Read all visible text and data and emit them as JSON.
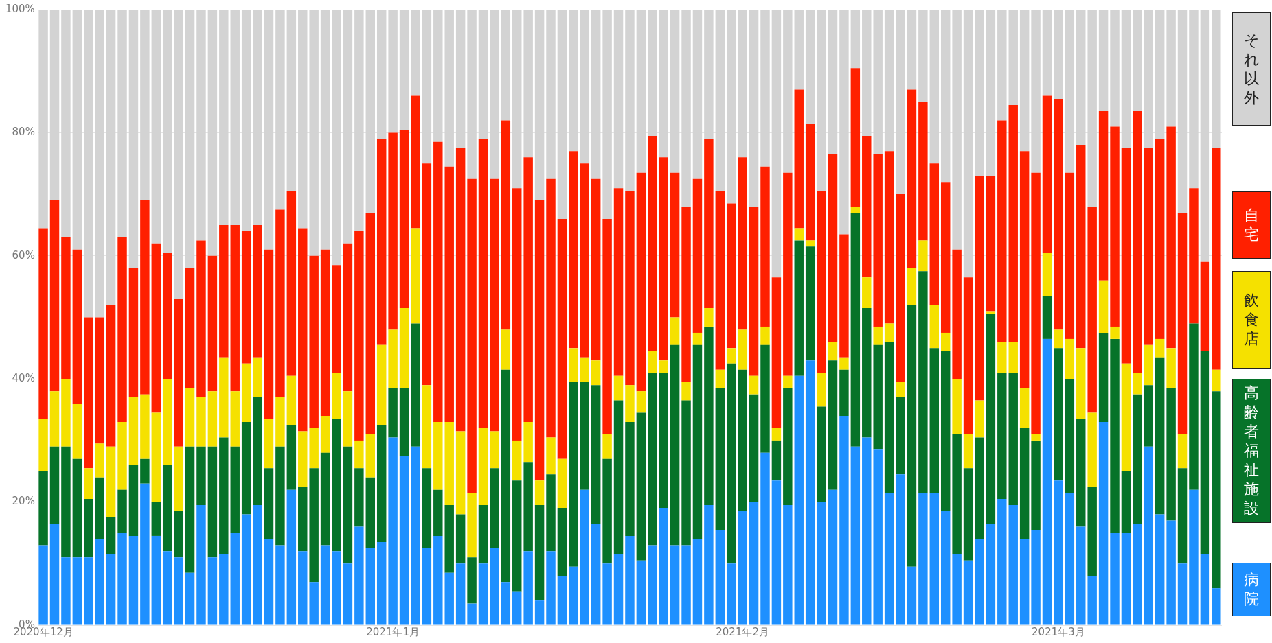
{
  "chart_data": {
    "type": "bar",
    "stacked": true,
    "categories": [
      "2020年12月",
      null,
      null,
      null,
      null,
      null,
      null,
      null,
      null,
      null,
      null,
      null,
      null,
      null,
      null,
      null,
      null,
      null,
      null,
      null,
      null,
      null,
      null,
      null,
      null,
      null,
      null,
      null,
      null,
      null,
      null,
      "2021年1月",
      null,
      null,
      null,
      null,
      null,
      null,
      null,
      null,
      null,
      null,
      null,
      null,
      null,
      null,
      null,
      null,
      null,
      null,
      null,
      null,
      null,
      null,
      null,
      null,
      null,
      null,
      null,
      null,
      null,
      null,
      "2021年2月",
      null,
      null,
      null,
      null,
      null,
      null,
      null,
      null,
      null,
      null,
      null,
      null,
      null,
      null,
      null,
      null,
      null,
      null,
      null,
      null,
      null,
      null,
      null,
      null,
      null,
      null,
      null,
      "2021年3月",
      null,
      null,
      null,
      null,
      null,
      null,
      null,
      null,
      null,
      null,
      null,
      null,
      null,
      null
    ],
    "ylim": [
      0,
      100
    ],
    "yticks": [
      {
        "value": 0,
        "label": "0%"
      },
      {
        "value": 20,
        "label": "20%"
      },
      {
        "value": 40,
        "label": "40%"
      },
      {
        "value": 60,
        "label": "60%"
      },
      {
        "value": 80,
        "label": "80%"
      },
      {
        "value": 100,
        "label": "100%"
      }
    ],
    "grid": "y",
    "legend": "right",
    "series": [
      {
        "name": "病院",
        "color": "#1e90ff",
        "values": [
          13,
          16.5,
          11,
          11,
          11,
          14,
          11.5,
          15,
          14.5,
          23,
          14.5,
          12,
          11,
          8.5,
          19.5,
          11,
          11.5,
          15,
          18,
          19.5,
          14,
          13,
          22,
          12,
          7,
          13,
          12,
          10,
          16,
          12.5,
          13.5,
          30.5,
          27.5,
          29,
          12.5,
          14.5,
          8.5,
          10,
          3.5,
          10,
          12.5,
          7,
          5.5,
          12,
          4,
          12,
          8,
          9.5,
          22,
          16.5,
          10,
          11.5,
          14.5,
          10.5,
          13,
          19,
          13,
          13,
          14,
          19.5,
          15.5,
          10,
          18.5,
          20,
          28,
          23.5,
          19.5,
          40.5,
          43,
          20,
          22,
          34,
          29,
          30.5,
          28.5,
          21.5,
          24.5,
          9.5,
          21.5,
          21.5,
          18.5,
          11.5,
          10.5,
          14,
          16.5,
          20.5,
          19.5,
          14,
          15.5,
          46.5,
          23.5,
          21.5,
          16,
          8,
          33,
          15,
          15,
          16.5,
          29,
          18,
          17,
          10,
          22,
          11.5,
          6
        ]
      },
      {
        "name": "高齢者福祉施設",
        "color": "#067329",
        "values": [
          12,
          12.5,
          18,
          16,
          9.5,
          10,
          6,
          7,
          11.5,
          4,
          5.5,
          14,
          7.5,
          20.5,
          9.5,
          18,
          19,
          14,
          15,
          17.5,
          11.5,
          16,
          10.5,
          10.5,
          18.5,
          15,
          21.5,
          19,
          9.5,
          11.5,
          19,
          8,
          11,
          20,
          13,
          7.5,
          11,
          8,
          7.5,
          9.5,
          13,
          34.5,
          18,
          14.5,
          15.5,
          12.5,
          11,
          30,
          17.5,
          22.5,
          17,
          25,
          18.5,
          24,
          28,
          22,
          32.5,
          23.5,
          31.5,
          29,
          23,
          32.5,
          23,
          17.5,
          17.5,
          6.5,
          19,
          22,
          18.5,
          15.5,
          21,
          7.5,
          38,
          21,
          17,
          24.5,
          12.5,
          42.5,
          36,
          23.5,
          26,
          19.5,
          15,
          16.5,
          34,
          20.5,
          21.5,
          18,
          14.5,
          7,
          21.5,
          18.5,
          17.5,
          14.5,
          14.5,
          31.5,
          10,
          21,
          10,
          25.5,
          21.5,
          15.5,
          27,
          33,
          32
        ]
      },
      {
        "name": "飲食店",
        "color": "#f5e100",
        "values": [
          8.5,
          9,
          11,
          9,
          5,
          5.5,
          11.5,
          11,
          11,
          10.5,
          14.5,
          14,
          10.5,
          9.5,
          8,
          9,
          13,
          9,
          9.5,
          6.5,
          8,
          8,
          8,
          9,
          6.5,
          6,
          7.5,
          9,
          4.5,
          7,
          13,
          9.5,
          13,
          15.5,
          13.5,
          11,
          13.5,
          13.5,
          10.5,
          12.5,
          6,
          6.5,
          6.5,
          6.5,
          4,
          6,
          8,
          5.5,
          4,
          4,
          4,
          4,
          6,
          3.5,
          3.5,
          2,
          4.5,
          3,
          2,
          3,
          3,
          2.5,
          6.5,
          3,
          3,
          2,
          2,
          2,
          1,
          5.5,
          3,
          2,
          1,
          5,
          3,
          3,
          2.5,
          6,
          5,
          7,
          3,
          9,
          5.5,
          6,
          0.5,
          5,
          5,
          6.5,
          1,
          7,
          3,
          6.5,
          11.5,
          12,
          8.5,
          2,
          17.5,
          3.5,
          6.5,
          3,
          6.5,
          5.5,
          0,
          0,
          3.5
        ]
      },
      {
        "name": "自宅",
        "color": "#ff2000",
        "values": [
          31,
          31,
          23,
          25,
          24.5,
          20.5,
          23,
          30,
          21,
          31.5,
          27.5,
          20.5,
          24,
          19.5,
          25.5,
          22,
          21.5,
          27,
          21.5,
          21.5,
          27.5,
          30.5,
          30,
          33,
          28,
          27,
          17.5,
          24,
          34,
          36,
          33.5,
          32,
          29,
          21.5,
          36,
          45.5,
          41.5,
          46,
          51,
          47,
          41,
          34,
          41,
          43,
          45.5,
          42,
          39,
          32,
          31.5,
          29.5,
          35,
          30.5,
          31.5,
          35.5,
          35,
          33,
          23.5,
          28.5,
          25,
          27.5,
          29,
          23.5,
          28,
          27.5,
          26,
          24.5,
          33,
          22.5,
          19,
          29.5,
          30.5,
          20,
          22.5,
          23,
          28,
          28,
          30.5,
          29,
          22.5,
          23,
          24.5,
          21,
          25.5,
          36.5,
          22,
          36,
          38.5,
          38.5,
          42.5,
          25.5,
          37.5,
          27,
          33,
          33.5,
          27.5,
          32.5,
          35,
          42.5,
          32,
          32.5,
          36,
          36,
          22,
          14.5,
          36
        ]
      },
      {
        "name": "それ以外",
        "color": "#d3d3d3",
        "values": [
          35.5,
          31,
          37,
          39,
          50,
          50,
          48,
          37,
          42,
          31,
          38,
          39.5,
          47,
          42,
          37.5,
          40,
          35,
          35,
          36,
          35,
          39,
          32.5,
          29.5,
          35.5,
          40,
          39,
          41.5,
          38,
          36,
          33,
          21,
          20,
          19.5,
          14,
          25,
          21.5,
          25.5,
          22.5,
          27.5,
          21,
          27.5,
          18,
          29,
          24,
          31,
          27.5,
          34,
          23,
          25,
          27.5,
          34,
          29,
          29.5,
          26.5,
          20.5,
          24,
          26.5,
          32,
          27.5,
          21,
          29.5,
          31.5,
          24,
          32,
          25.5,
          43.5,
          26.5,
          13,
          18.5,
          29.5,
          23.5,
          36.5,
          9.5,
          20.5,
          23.5,
          23,
          30,
          13,
          15,
          25,
          28,
          39,
          43.5,
          27,
          27,
          18,
          15.5,
          23,
          26.5,
          14,
          14.5,
          26.5,
          22,
          32,
          16.5,
          19,
          22.5,
          16.5,
          22.5,
          21,
          19,
          33,
          29,
          41,
          22.5
        ]
      }
    ]
  }
}
